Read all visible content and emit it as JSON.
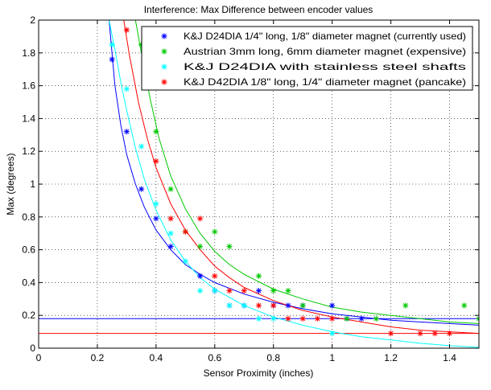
{
  "chart_data": {
    "type": "scatter",
    "title": "Interference: Max Difference between encoder values",
    "xlabel": "Sensor Proximity (inches)",
    "ylabel": "Max (degrees)",
    "xlim": [
      0,
      1.5
    ],
    "ylim": [
      0,
      2
    ],
    "xticks": [
      0,
      0.2,
      0.4,
      0.6,
      0.8,
      1,
      1.2,
      1.4
    ],
    "xtick_labels": [
      "0",
      "0.2",
      "0.4",
      "0.6",
      "0.8",
      "1",
      "1.2",
      "1.4"
    ],
    "yticks": [
      0,
      0.2,
      0.4,
      0.6,
      0.8,
      1,
      1.2,
      1.4,
      1.6,
      1.8,
      2
    ],
    "ytick_labels": [
      "0",
      "0.2",
      "0.4",
      "0.6",
      "0.8",
      "1",
      "1.2",
      "1.4",
      "1.6",
      "1.8",
      "2"
    ],
    "grid": true,
    "legend_position": "top-right",
    "series": [
      {
        "name": "K&J D24DIA 1/4\" long, 1/8\" diameter magnet (currently used)",
        "color": "#0000ff",
        "points": [
          [
            0.25,
            1.76
          ],
          [
            0.3,
            1.32
          ],
          [
            0.35,
            0.97
          ],
          [
            0.4,
            0.79
          ],
          [
            0.45,
            0.62
          ],
          [
            0.55,
            0.44
          ],
          [
            0.6,
            0.35
          ],
          [
            0.65,
            0.26
          ],
          [
            0.7,
            0.26
          ],
          [
            0.75,
            0.35
          ],
          [
            0.8,
            0.26
          ],
          [
            0.85,
            0.26
          ],
          [
            0.9,
            0.26
          ],
          [
            1.0,
            0.26
          ],
          [
            1.05,
            0.18
          ],
          [
            1.1,
            0.18
          ]
        ],
        "fit_points": [
          [
            0.24,
            2.0
          ],
          [
            0.26,
            1.6
          ],
          [
            0.28,
            1.36
          ],
          [
            0.3,
            1.18
          ],
          [
            0.33,
            1.0
          ],
          [
            0.36,
            0.86
          ],
          [
            0.4,
            0.72
          ],
          [
            0.45,
            0.6
          ],
          [
            0.5,
            0.51
          ],
          [
            0.55,
            0.45
          ],
          [
            0.6,
            0.4
          ],
          [
            0.7,
            0.33
          ],
          [
            0.8,
            0.28
          ],
          [
            0.9,
            0.24
          ],
          [
            1.0,
            0.21
          ],
          [
            1.1,
            0.19
          ],
          [
            1.2,
            0.17
          ],
          [
            1.3,
            0.16
          ],
          [
            1.4,
            0.15
          ],
          [
            1.5,
            0.14
          ]
        ],
        "threshold": 0.18
      },
      {
        "name": "Austrian 3mm long, 6mm diameter magnet (expensive)",
        "color": "#00c800",
        "points": [
          [
            0.35,
            1.85
          ],
          [
            0.4,
            1.32
          ],
          [
            0.45,
            0.97
          ],
          [
            0.5,
            0.71
          ],
          [
            0.55,
            0.62
          ],
          [
            0.6,
            0.71
          ],
          [
            0.65,
            0.62
          ],
          [
            0.75,
            0.44
          ],
          [
            0.8,
            0.35
          ],
          [
            0.85,
            0.35
          ],
          [
            0.9,
            0.26
          ],
          [
            1.05,
            0.18
          ],
          [
            1.15,
            0.18
          ],
          [
            1.25,
            0.26
          ],
          [
            1.45,
            0.26
          ],
          [
            1.5,
            0.18
          ]
        ],
        "fit_points": [
          [
            0.33,
            2.0
          ],
          [
            0.35,
            1.8
          ],
          [
            0.38,
            1.52
          ],
          [
            0.41,
            1.28
          ],
          [
            0.45,
            1.05
          ],
          [
            0.5,
            0.85
          ],
          [
            0.55,
            0.7
          ],
          [
            0.6,
            0.59
          ],
          [
            0.65,
            0.51
          ],
          [
            0.7,
            0.45
          ],
          [
            0.8,
            0.36
          ],
          [
            0.9,
            0.3
          ],
          [
            1.0,
            0.25
          ],
          [
            1.1,
            0.22
          ],
          [
            1.2,
            0.2
          ],
          [
            1.3,
            0.18
          ],
          [
            1.4,
            0.16
          ],
          [
            1.5,
            0.15
          ]
        ]
      },
      {
        "name": "K&J D24DIA with stainless steel shafts",
        "color": "#00ffff",
        "points": [
          [
            0.25,
            1.85
          ],
          [
            0.3,
            1.58
          ],
          [
            0.35,
            1.23
          ],
          [
            0.4,
            0.88
          ],
          [
            0.45,
            0.7
          ],
          [
            0.5,
            0.53
          ],
          [
            0.55,
            0.35
          ],
          [
            0.6,
            0.35
          ],
          [
            0.65,
            0.26
          ],
          [
            0.7,
            0.26
          ],
          [
            0.75,
            0.18
          ],
          [
            0.8,
            0.18
          ],
          [
            1.0,
            0.09
          ]
        ],
        "fit_points": [
          [
            0.24,
            2.0
          ],
          [
            0.26,
            1.82
          ],
          [
            0.28,
            1.62
          ],
          [
            0.3,
            1.45
          ],
          [
            0.33,
            1.22
          ],
          [
            0.36,
            1.03
          ],
          [
            0.4,
            0.84
          ],
          [
            0.45,
            0.66
          ],
          [
            0.5,
            0.53
          ],
          [
            0.55,
            0.43
          ],
          [
            0.6,
            0.36
          ],
          [
            0.7,
            0.26
          ],
          [
            0.8,
            0.19
          ],
          [
            0.9,
            0.14
          ],
          [
            1.0,
            0.1
          ],
          [
            1.1,
            0.07
          ],
          [
            1.2,
            0.05
          ],
          [
            1.3,
            0.03
          ],
          [
            1.4,
            0.015
          ],
          [
            1.5,
            0.005
          ]
        ]
      },
      {
        "name": "K&J D42DIA 1/8\" long, 1/4\" diameter magnet (pancake)",
        "color": "#ff0000",
        "points": [
          [
            0.3,
            1.94
          ],
          [
            0.4,
            1.14
          ],
          [
            0.45,
            0.79
          ],
          [
            0.5,
            0.71
          ],
          [
            0.55,
            0.79
          ],
          [
            0.6,
            0.44
          ],
          [
            0.65,
            0.35
          ],
          [
            0.7,
            0.35
          ],
          [
            0.75,
            0.26
          ],
          [
            0.8,
            0.26
          ],
          [
            0.85,
            0.18
          ],
          [
            0.9,
            0.18
          ],
          [
            0.95,
            0.18
          ],
          [
            1.0,
            0.18
          ],
          [
            1.2,
            0.09
          ],
          [
            1.3,
            0.09
          ],
          [
            1.35,
            0.09
          ],
          [
            1.4,
            0.09
          ]
        ],
        "fit_points": [
          [
            0.29,
            2.0
          ],
          [
            0.31,
            1.78
          ],
          [
            0.34,
            1.5
          ],
          [
            0.37,
            1.28
          ],
          [
            0.4,
            1.1
          ],
          [
            0.45,
            0.88
          ],
          [
            0.5,
            0.72
          ],
          [
            0.55,
            0.6
          ],
          [
            0.6,
            0.5
          ],
          [
            0.65,
            0.43
          ],
          [
            0.7,
            0.37
          ],
          [
            0.8,
            0.29
          ],
          [
            0.9,
            0.23
          ],
          [
            1.0,
            0.19
          ],
          [
            1.1,
            0.16
          ],
          [
            1.2,
            0.13
          ],
          [
            1.3,
            0.11
          ],
          [
            1.4,
            0.1
          ],
          [
            1.5,
            0.09
          ]
        ],
        "threshold": 0.09
      }
    ]
  }
}
